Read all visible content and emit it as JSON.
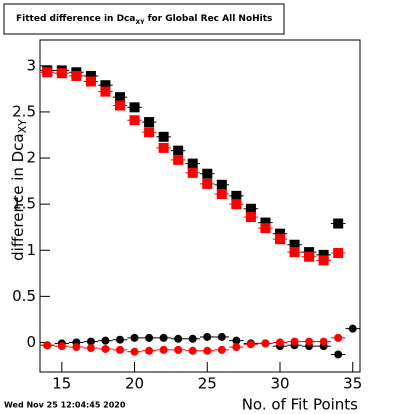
{
  "chart_data": {
    "type": "scatter",
    "title": "Fitted difference in Dca",
    "title_subscript": "XY",
    "title_rest": " for Global Rec All NoHits",
    "y_label": "difference in Dca",
    "y_label_subscript": "XY",
    "x_label": "No. of Fit Points",
    "date": "Wed Nov 25 12:04:45 2020",
    "x": [
      14,
      15,
      16,
      17,
      18,
      19,
      20,
      21,
      22,
      23,
      24,
      25,
      26,
      27,
      28,
      29,
      30,
      31,
      32,
      33,
      34,
      35
    ],
    "series": [
      {
        "color": "#000000",
        "marker": "square",
        "values": [
          2.95,
          2.95,
          2.93,
          2.89,
          2.79,
          2.66,
          2.55,
          2.39,
          2.23,
          2.08,
          1.94,
          1.83,
          1.71,
          1.59,
          1.45,
          1.3,
          1.18,
          1.06,
          0.98,
          0.95,
          1.29,
          null
        ]
      },
      {
        "color": "#ff0000",
        "marker": "square",
        "values": [
          2.93,
          2.92,
          2.89,
          2.83,
          2.72,
          2.57,
          2.41,
          2.28,
          2.11,
          1.98,
          1.84,
          1.72,
          1.61,
          1.5,
          1.36,
          1.24,
          1.12,
          0.98,
          0.93,
          0.89,
          0.97,
          null
        ]
      },
      {
        "color": "#000000",
        "marker": "circle",
        "values": [
          -0.03,
          -0.01,
          0.0,
          0.01,
          0.02,
          0.03,
          0.05,
          0.05,
          0.05,
          0.04,
          0.04,
          0.06,
          0.06,
          0.02,
          -0.01,
          -0.01,
          -0.04,
          -0.03,
          -0.04,
          -0.04,
          -0.13,
          0.15
        ]
      },
      {
        "color": "#ff0000",
        "marker": "circle",
        "values": [
          -0.03,
          -0.04,
          -0.05,
          -0.06,
          -0.07,
          -0.08,
          -0.1,
          -0.09,
          -0.08,
          -0.08,
          -0.09,
          -0.09,
          -0.08,
          -0.05,
          -0.02,
          -0.01,
          0.0,
          0.01,
          0.01,
          0.01,
          0.05,
          null
        ]
      }
    ],
    "xlim": [
      13.5,
      35.5
    ],
    "ylim": [
      -0.32,
      3.28
    ],
    "xticks": [
      15,
      20,
      25,
      30,
      35
    ],
    "yticks": [
      0,
      0.5,
      1,
      1.5,
      2,
      2.5,
      3
    ]
  }
}
